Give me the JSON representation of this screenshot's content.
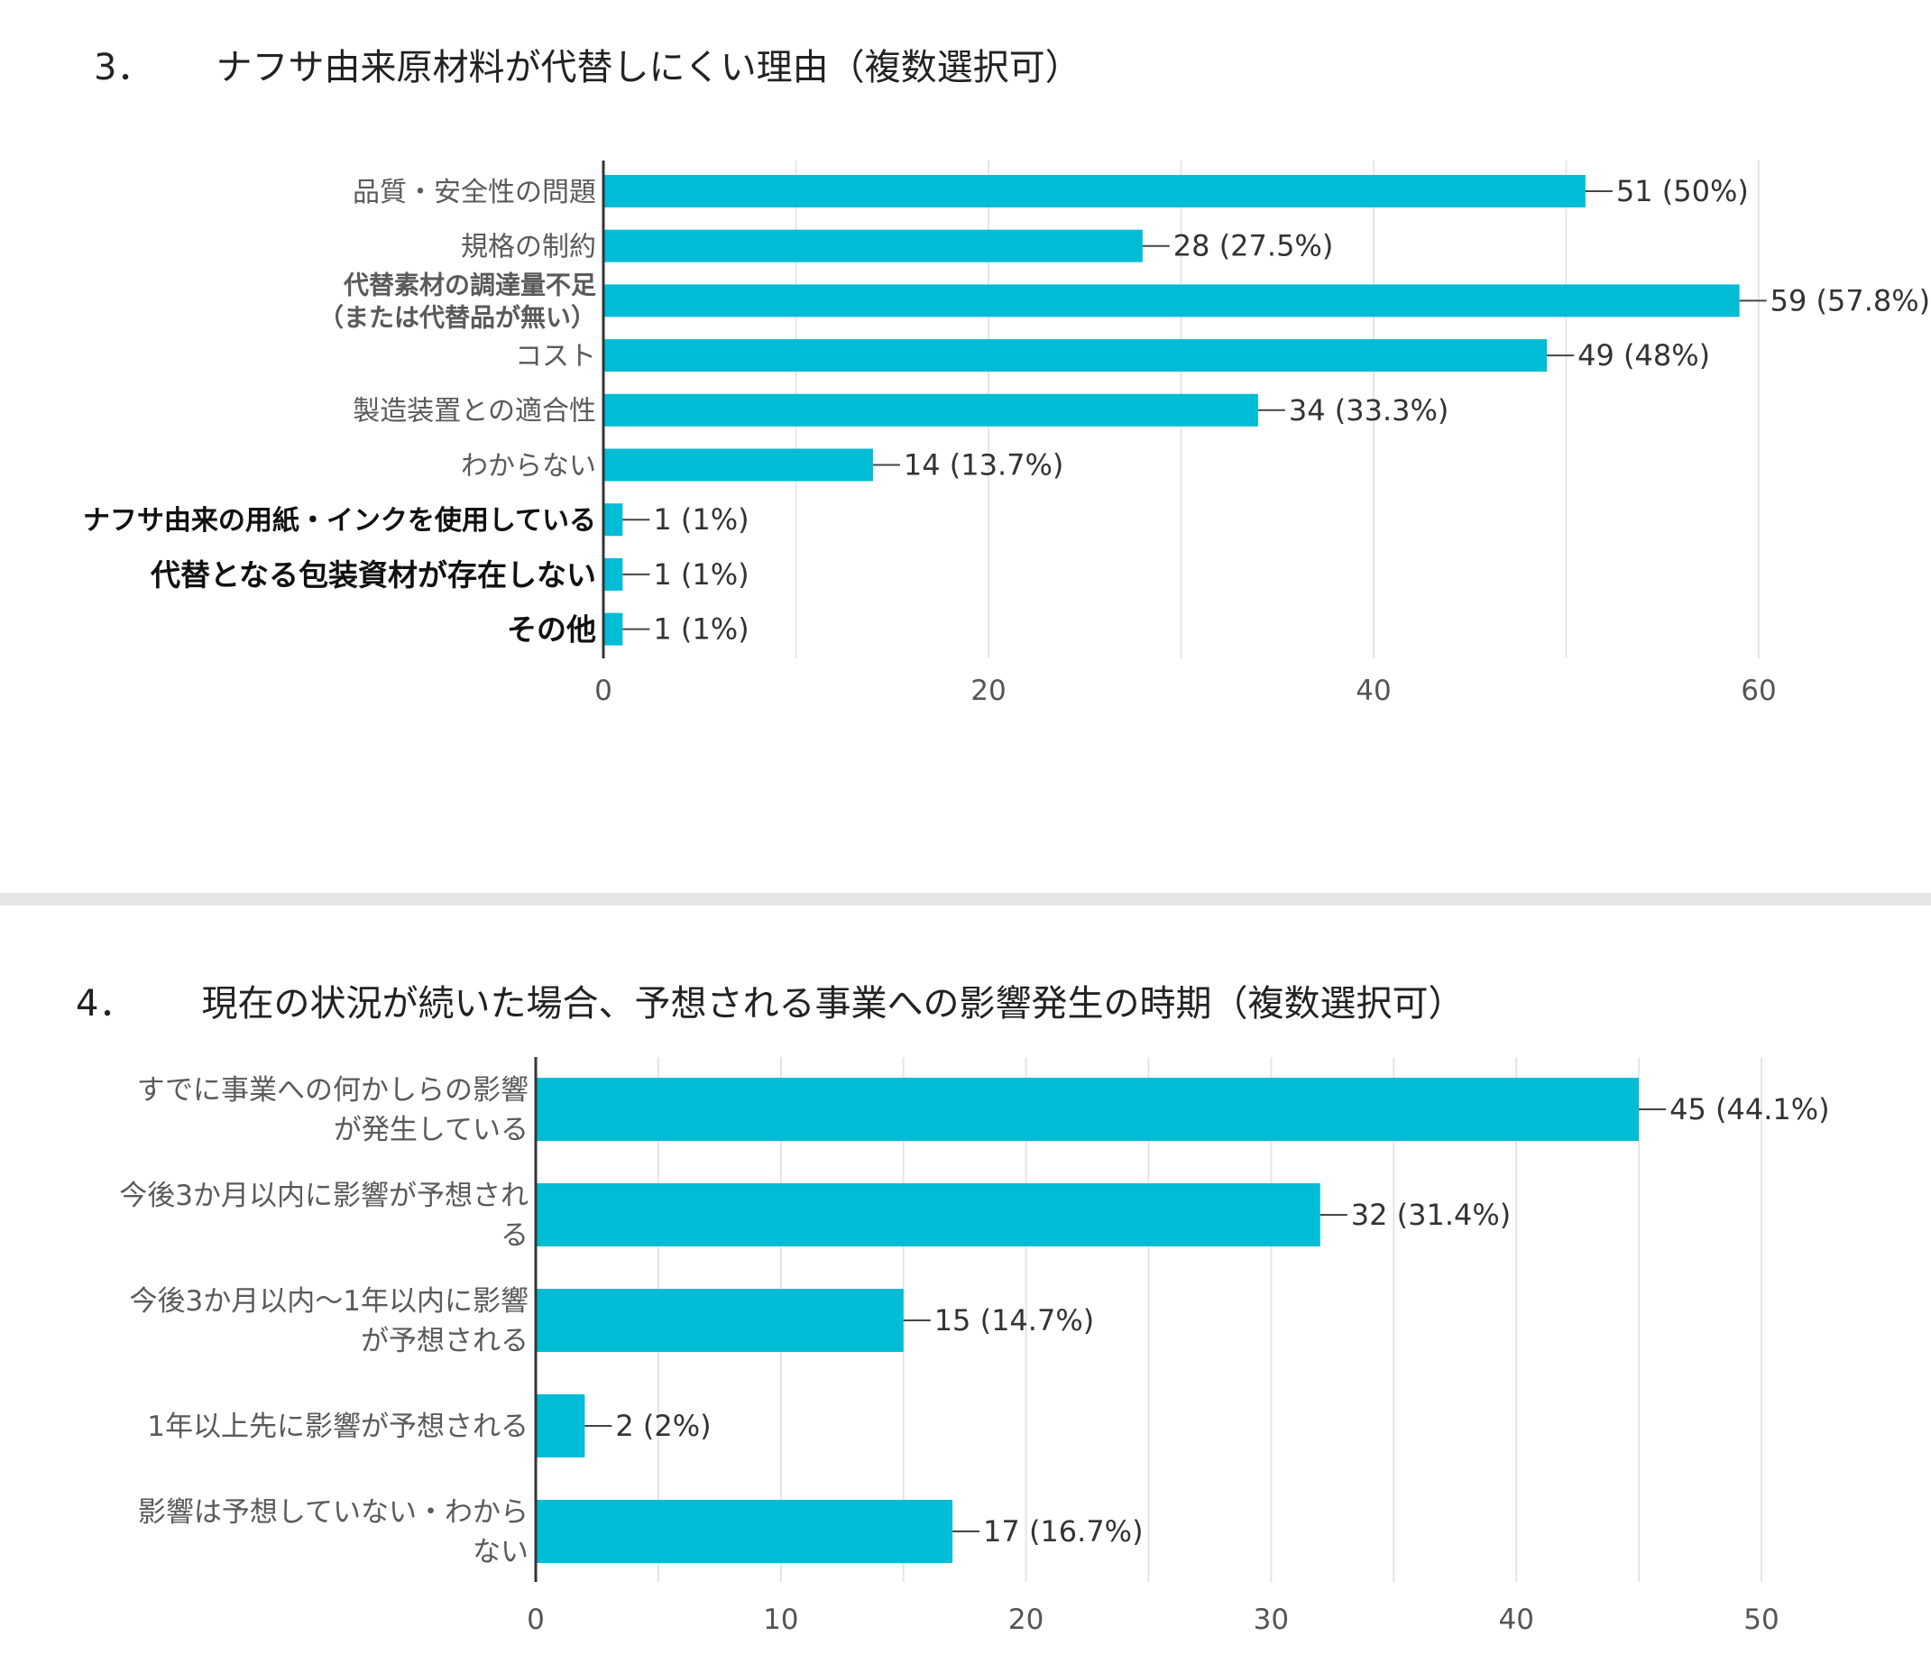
{
  "charts_meta": {
    "bar_color": "#00BCD4",
    "grid_color": "#e5e5e5",
    "axis_color": "#333333"
  },
  "chart_data": [
    {
      "type": "bar",
      "orientation": "horizontal",
      "number": "3．",
      "title": "ナフサ由来原材料が代替しにくい理由（複数選択可）",
      "categories": [
        [
          "品質・安全性の問題"
        ],
        [
          "規格の制約"
        ],
        [
          "代替素材の調達量不足",
          "（または代替品が無い）"
        ],
        [
          "コスト"
        ],
        [
          "製造装置との適合性"
        ],
        [
          "わからない"
        ],
        [
          "ナフサ由来の用紙・インクを使用している"
        ],
        [
          "代替となる包装資材が存在しない"
        ],
        [
          "その他"
        ]
      ],
      "values": [
        51,
        28,
        59,
        49,
        34,
        14,
        1,
        1,
        1
      ],
      "data_labels": [
        "51 (50%)",
        "28 (27.5%)",
        "59 (57.8%)",
        "49 (48%)",
        "34 (33.3%)",
        "14 (13.7%)",
        "1 (1%)",
        "1 (1%)",
        "1 (1%)"
      ],
      "xlim": [
        0,
        60
      ],
      "xticks": [
        0,
        20,
        40,
        60
      ],
      "grid": true
    },
    {
      "type": "bar",
      "orientation": "horizontal",
      "number": "4．",
      "title": "現在の状況が続いた場合、予想される事業への影響発生の時期（複数選択可）",
      "categories": [
        [
          "すでに事業への何かしらの影響",
          "が発生している"
        ],
        [
          "今後3か月以内に影響が予想され",
          "る"
        ],
        [
          "今後3か月以内～1年以内に影響",
          "が予想される"
        ],
        [
          "1年以上先に影響が予想される"
        ],
        [
          "影響は予想していない・わから",
          "ない"
        ]
      ],
      "values": [
        45,
        32,
        15,
        2,
        17
      ],
      "data_labels": [
        "45 (44.1%)",
        "32 (31.4%)",
        "15 (14.7%)",
        "2 (2%)",
        "17 (16.7%)"
      ],
      "xlim": [
        0,
        50
      ],
      "xticks": [
        0,
        10,
        20,
        30,
        40,
        50
      ],
      "grid": true
    }
  ]
}
